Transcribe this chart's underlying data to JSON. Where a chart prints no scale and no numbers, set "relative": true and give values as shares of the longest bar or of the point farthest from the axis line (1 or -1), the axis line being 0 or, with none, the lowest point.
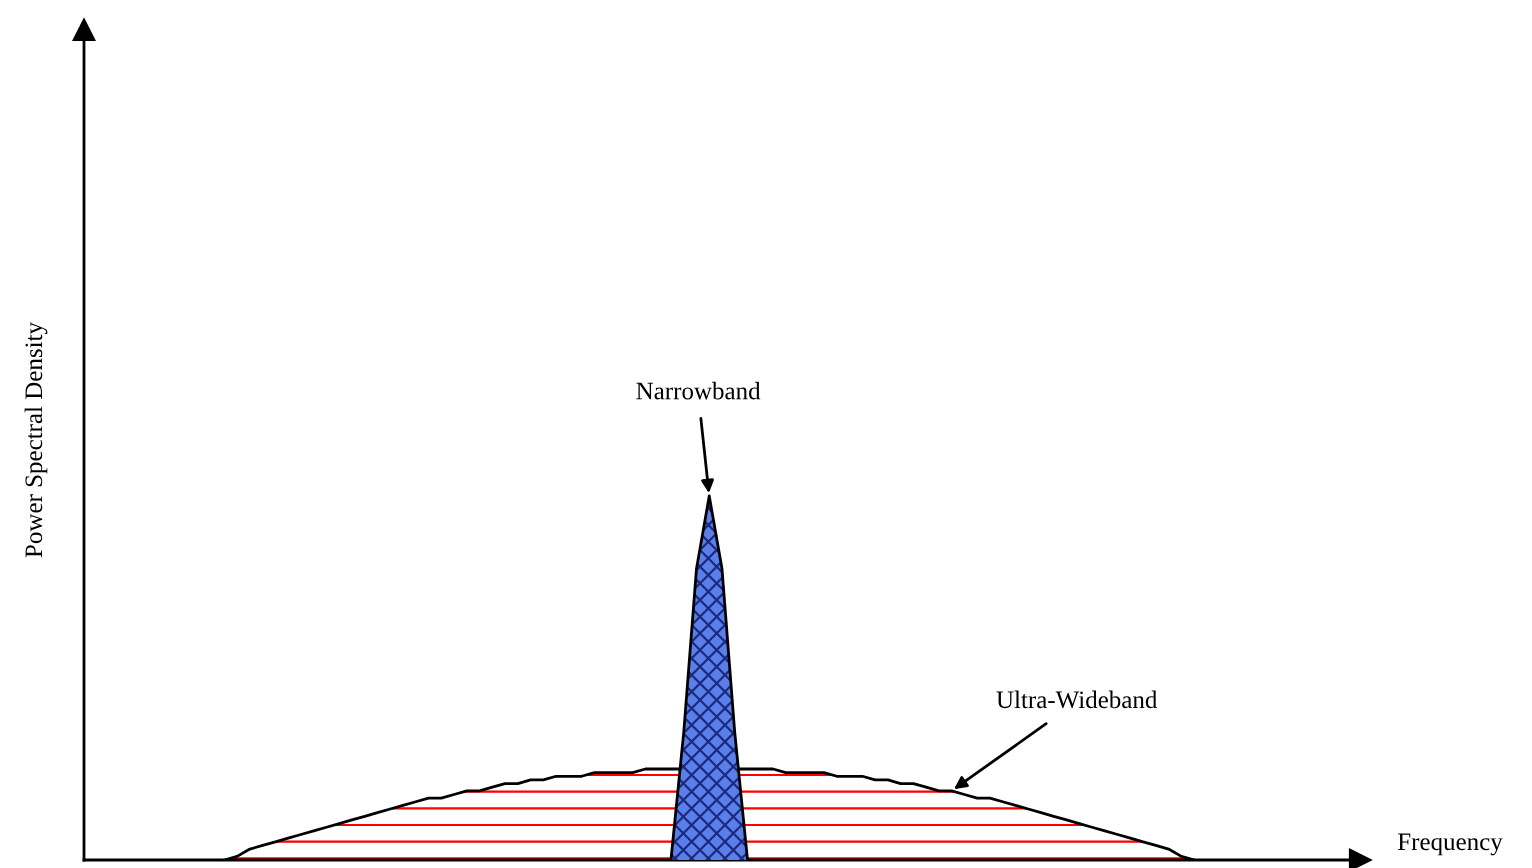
{
  "chart_data": {
    "type": "area",
    "relative": true,
    "xlabel": "Frequency",
    "ylabel": "Power Spectral Density",
    "categories": [
      null,
      null,
      null,
      null,
      null,
      null,
      null,
      null,
      null,
      null,
      null,
      null,
      null,
      null,
      null,
      null,
      null,
      null,
      null,
      null,
      null,
      null,
      null,
      null,
      null,
      null,
      null,
      null,
      null,
      null,
      null,
      null,
      null,
      null,
      null,
      null,
      null,
      null,
      null,
      null,
      null,
      null,
      null,
      null,
      null,
      null,
      null,
      null,
      null,
      null,
      null,
      null,
      null,
      null,
      null,
      null,
      null,
      null,
      null,
      null,
      null,
      null,
      null,
      null,
      null,
      null,
      null,
      null,
      null,
      null,
      null,
      null,
      null,
      null,
      null,
      null,
      null,
      null,
      null,
      null,
      null,
      null,
      null,
      null,
      null,
      null,
      null,
      null,
      null,
      null,
      null,
      null,
      null,
      null,
      null,
      null,
      null,
      null,
      null,
      null,
      null
    ],
    "series": [
      {
        "name": "Ultra-Wideband",
        "color": "#ff0000",
        "values": [
          null,
          null,
          null,
          null,
          null,
          null,
          null,
          null,
          null,
          null,
          null,
          0,
          0.01,
          0.03,
          0.04,
          0.05,
          0.06,
          0.07,
          0.08,
          0.09,
          0.1,
          0.11,
          0.12,
          0.13,
          0.14,
          0.15,
          0.16,
          0.17,
          0.17,
          0.18,
          0.19,
          0.19,
          0.2,
          0.21,
          0.21,
          0.22,
          0.22,
          0.23,
          0.23,
          0.23,
          0.24,
          0.24,
          0.24,
          0.24,
          0.25,
          0.25,
          0.25,
          0.25,
          0.25,
          0.25,
          0.25,
          0.25,
          0.25,
          0.25,
          0.25,
          0.24,
          0.24,
          0.24,
          0.24,
          0.23,
          0.23,
          0.23,
          0.22,
          0.22,
          0.21,
          0.21,
          0.2,
          0.19,
          0.19,
          0.18,
          0.17,
          0.17,
          0.16,
          0.15,
          0.14,
          0.13,
          0.12,
          0.11,
          0.1,
          0.09,
          0.08,
          0.07,
          0.06,
          0.05,
          0.04,
          0.03,
          0.01,
          0,
          null,
          null,
          null,
          null,
          null,
          null,
          null,
          null,
          null,
          null,
          null,
          null,
          null
        ]
      },
      {
        "name": "Narrowband",
        "color": "#5b7fe8",
        "values": [
          null,
          null,
          null,
          null,
          null,
          null,
          null,
          null,
          null,
          null,
          null,
          null,
          null,
          null,
          null,
          null,
          null,
          null,
          null,
          null,
          null,
          null,
          null,
          null,
          null,
          null,
          null,
          null,
          null,
          null,
          null,
          null,
          null,
          null,
          null,
          null,
          null,
          null,
          null,
          null,
          null,
          null,
          null,
          null,
          null,
          null,
          0,
          0.35,
          0.8,
          1,
          0.8,
          0.35,
          0,
          null,
          null,
          null,
          null,
          null,
          null,
          null,
          null,
          null,
          null,
          null,
          null,
          null,
          null,
          null,
          null,
          null,
          null,
          null,
          null,
          null,
          null,
          null,
          null,
          null,
          null,
          null,
          null,
          null,
          null,
          null,
          null,
          null,
          null,
          null,
          null,
          null,
          null,
          null,
          null,
          null,
          null,
          null,
          null,
          null,
          null,
          null,
          null
        ]
      }
    ]
  }
}
